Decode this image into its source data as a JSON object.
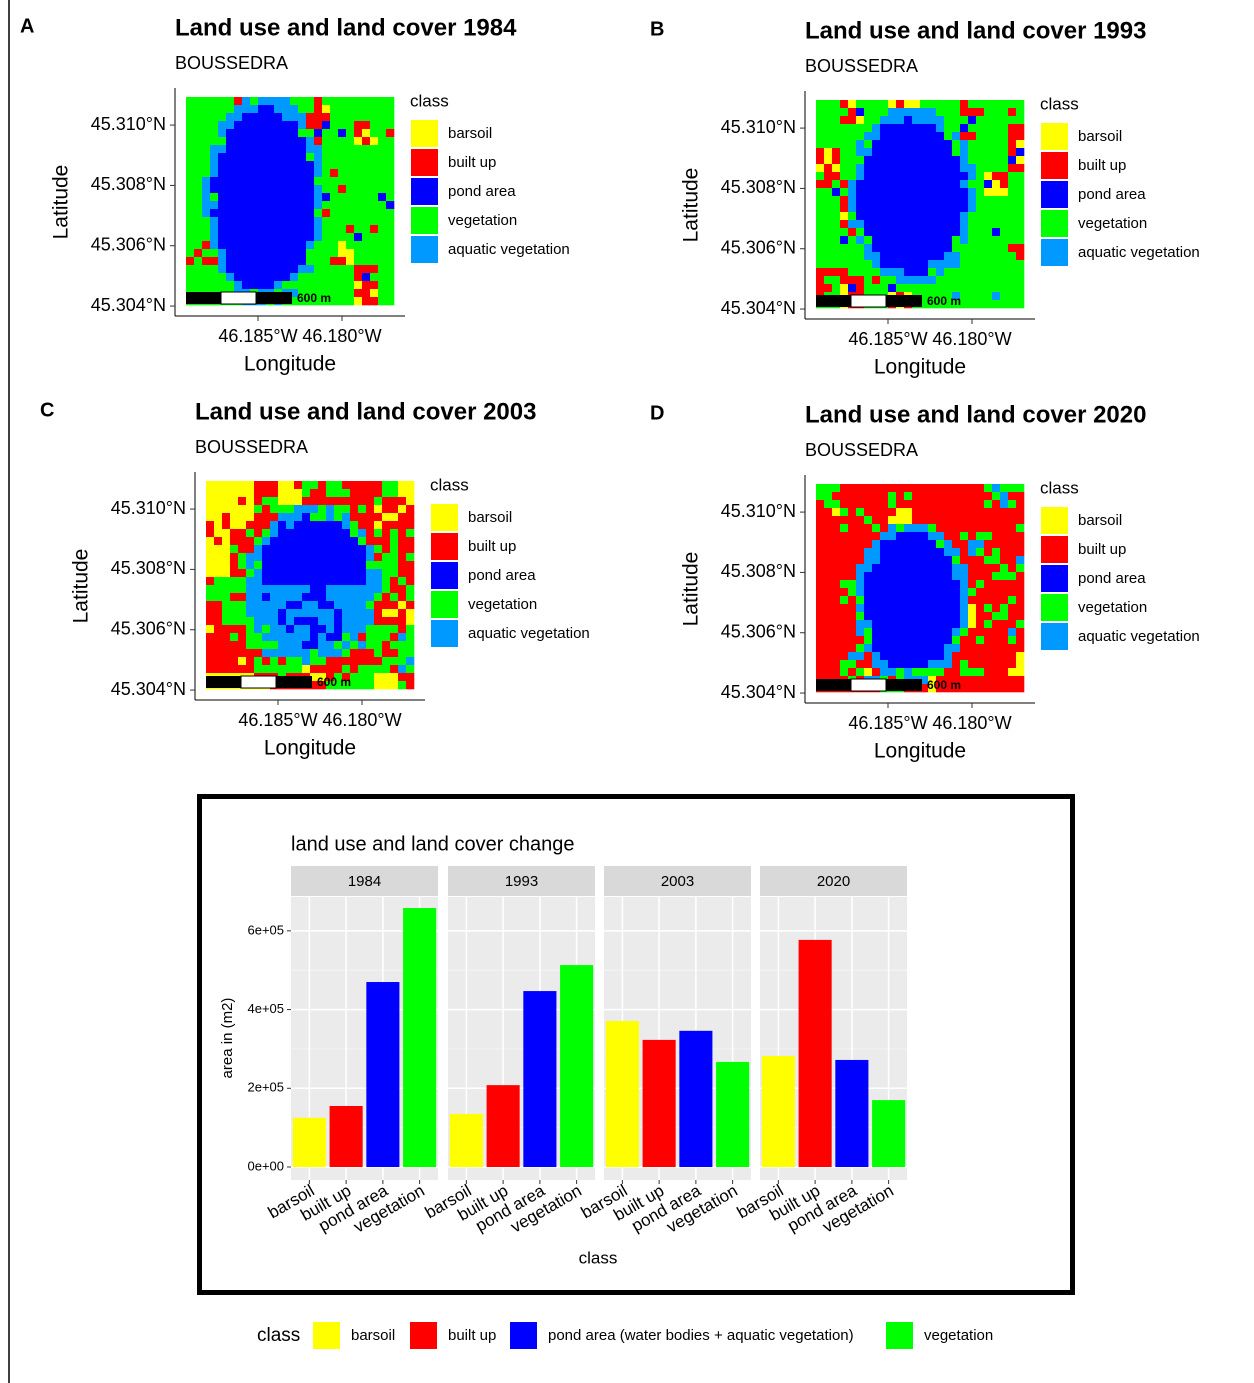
{
  "chart_data": [
    {
      "type": "map",
      "panel": "A",
      "title": "Land use and land cover 1984",
      "subtitle": "BOUSSEDRA",
      "xlabel": "Longitude",
      "ylabel": "Latitude",
      "xlim": [
        -46.18994,
        -46.17625
      ],
      "ylim": [
        45.30367,
        45.31123
      ],
      "xticks": [
        {
          "value": -46.185,
          "label": "46.185°W"
        },
        {
          "value": -46.18,
          "label": "46.180°W"
        }
      ],
      "yticks": [
        {
          "value": 45.304,
          "label": "45.304°N"
        },
        {
          "value": 45.306,
          "label": "45.306°N"
        },
        {
          "value": 45.308,
          "label": "45.308°N"
        },
        {
          "value": 45.31,
          "label": "45.310°N"
        }
      ],
      "legend_title": "class",
      "classes": [
        {
          "name": "barsoil",
          "color": "#ffff00"
        },
        {
          "name": "built up",
          "color": "#ff0000"
        },
        {
          "name": "pond area",
          "color": "#0000ff"
        },
        {
          "name": "vegetation",
          "color": "#00ff00"
        },
        {
          "name": "aquatic vegetation",
          "color": "#0099ff"
        }
      ],
      "scalebar": "600 m"
    },
    {
      "type": "map",
      "panel": "B",
      "title": "Land use and land cover 1993",
      "subtitle": "BOUSSEDRA",
      "xlabel": "Longitude",
      "ylabel": "Latitude",
      "xlim": [
        -46.18994,
        -46.17625
      ],
      "ylim": [
        45.30367,
        45.31123
      ],
      "xticks": [
        {
          "value": -46.185,
          "label": "46.185°W"
        },
        {
          "value": -46.18,
          "label": "46.180°W"
        }
      ],
      "yticks": [
        {
          "value": 45.304,
          "label": "45.304°N"
        },
        {
          "value": 45.306,
          "label": "45.306°N"
        },
        {
          "value": 45.308,
          "label": "45.308°N"
        },
        {
          "value": 45.31,
          "label": "45.310°N"
        }
      ],
      "legend_title": "class",
      "classes": [
        {
          "name": "barsoil",
          "color": "#ffff00"
        },
        {
          "name": "built up",
          "color": "#ff0000"
        },
        {
          "name": "pond area",
          "color": "#0000ff"
        },
        {
          "name": "vegetation",
          "color": "#00ff00"
        },
        {
          "name": "aquatic vegetation",
          "color": "#0099ff"
        }
      ],
      "scalebar": "600 m"
    },
    {
      "type": "map",
      "panel": "C",
      "title": "Land use and land cover 2003",
      "subtitle": "BOUSSEDRA",
      "xlabel": "Longitude",
      "ylabel": "Latitude",
      "xlim": [
        -46.18994,
        -46.17625
      ],
      "ylim": [
        45.30367,
        45.31123
      ],
      "xticks": [
        {
          "value": -46.185,
          "label": "46.185°W"
        },
        {
          "value": -46.18,
          "label": "46.180°W"
        }
      ],
      "yticks": [
        {
          "value": 45.304,
          "label": "45.304°N"
        },
        {
          "value": 45.306,
          "label": "45.306°N"
        },
        {
          "value": 45.308,
          "label": "45.308°N"
        },
        {
          "value": 45.31,
          "label": "45.310°N"
        }
      ],
      "legend_title": "class",
      "classes": [
        {
          "name": "barsoil",
          "color": "#ffff00"
        },
        {
          "name": "built up",
          "color": "#ff0000"
        },
        {
          "name": "pond area",
          "color": "#0000ff"
        },
        {
          "name": "vegetation",
          "color": "#00ff00"
        },
        {
          "name": "aquatic vegetation",
          "color": "#0099ff"
        }
      ],
      "scalebar": "600 m"
    },
    {
      "type": "map",
      "panel": "D",
      "title": "Land use and land cover 2020",
      "subtitle": "BOUSSEDRA",
      "xlabel": "Longitude",
      "ylabel": "Latitude",
      "xlim": [
        -46.18994,
        -46.17625
      ],
      "ylim": [
        45.30367,
        45.31123
      ],
      "xticks": [
        {
          "value": -46.185,
          "label": "46.185°W"
        },
        {
          "value": -46.18,
          "label": "46.180°W"
        }
      ],
      "yticks": [
        {
          "value": 45.304,
          "label": "45.304°N"
        },
        {
          "value": 45.306,
          "label": "45.306°N"
        },
        {
          "value": 45.308,
          "label": "45.308°N"
        },
        {
          "value": 45.31,
          "label": "45.310°N"
        }
      ],
      "legend_title": "class",
      "classes": [
        {
          "name": "barsoil",
          "color": "#ffff00"
        },
        {
          "name": "built up",
          "color": "#ff0000"
        },
        {
          "name": "pond area",
          "color": "#0000ff"
        },
        {
          "name": "vegetation",
          "color": "#00ff00"
        },
        {
          "name": "aquatic vegetation",
          "color": "#0099ff"
        }
      ],
      "scalebar": "600 m"
    },
    {
      "type": "bar",
      "title": "land use and land cover change",
      "xlabel": "class",
      "ylabel": "area in (m2)",
      "categories": [
        "barsoil",
        "built up",
        "pond area",
        "vegetation"
      ],
      "colors": [
        "#ffff00",
        "#ff0000",
        "#0000ff",
        "#00ff00"
      ],
      "facets": [
        {
          "name": "1984",
          "values": [
            125000,
            155000,
            470000,
            658000
          ]
        },
        {
          "name": "1993",
          "values": [
            135000,
            208000,
            447000,
            513000
          ]
        },
        {
          "name": "2003",
          "values": [
            371000,
            323000,
            346000,
            267000
          ]
        },
        {
          "name": "2020",
          "values": [
            282000,
            577000,
            272000,
            170000
          ]
        }
      ],
      "ylim": [
        -33000,
        686000
      ],
      "yticks": [
        {
          "value": 0,
          "label": "0e+00"
        },
        {
          "value": 200000,
          "label": "2e+05"
        },
        {
          "value": 400000,
          "label": "4e+05"
        },
        {
          "value": 600000,
          "label": "6e+05"
        }
      ],
      "grid": true,
      "legend": {
        "title": "class",
        "entries": [
          "barsoil",
          "built up",
          "pond area (water bodies + aquatic vegetation)",
          "vegetation"
        ]
      }
    }
  ]
}
